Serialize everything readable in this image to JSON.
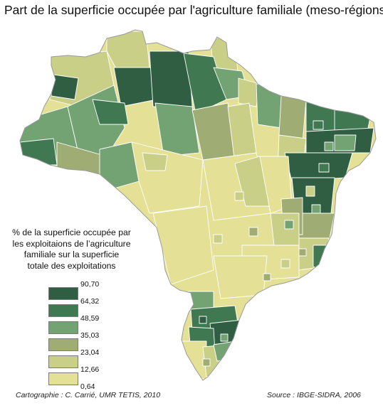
{
  "title": "Part de la superficie occupée par l'agriculture familiale (meso-régions)",
  "legend": {
    "title_lines": [
      "% de la superficie occupée par",
      "les exploitaions de l’agriculture",
      "familiale sur la superficie",
      "totale des exploitations"
    ],
    "breaks": [
      "90,70",
      "64,32",
      "48,59",
      "35,03",
      "23,04",
      "12,66",
      "0,64"
    ],
    "classes": [
      {
        "range": "64,32 – 90,70",
        "color": "#2f5e43"
      },
      {
        "range": "48,59 – 64,32",
        "color": "#3f7851"
      },
      {
        "range": "35,03 – 48,59",
        "color": "#73a273"
      },
      {
        "range": "23,04 – 35,03",
        "color": "#9fac74"
      },
      {
        "range": "12,66 – 23,04",
        "color": "#c9cf87"
      },
      {
        "range": "0,64 – 12,66",
        "color": "#e4e196"
      }
    ]
  },
  "credit": "Cartographie : C. Carrié, UMR TETIS, 2010",
  "source": "Source : IBGE-SIDRA, 2006"
}
